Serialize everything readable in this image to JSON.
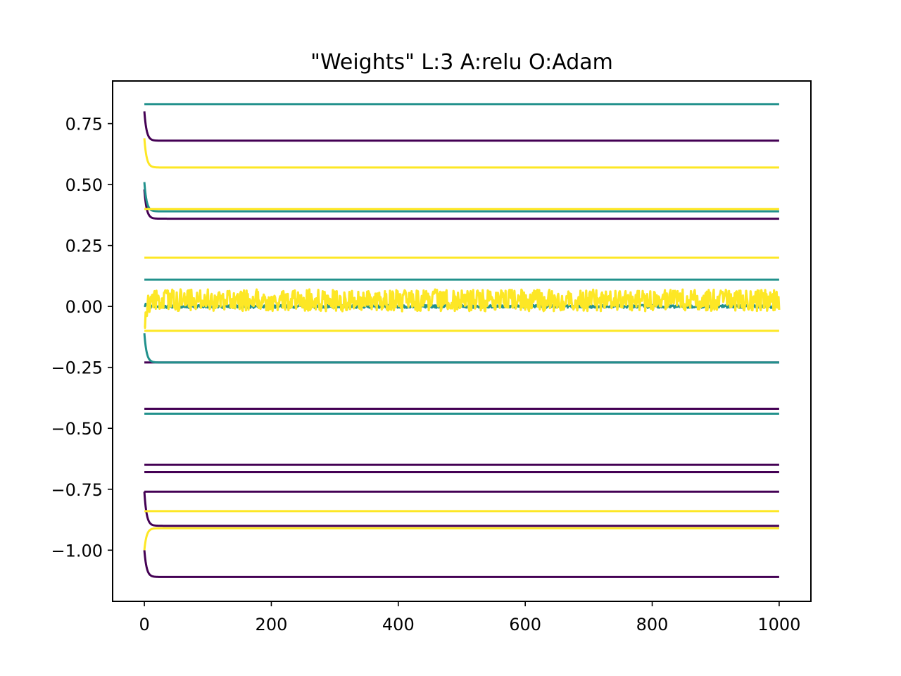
{
  "chart_data": {
    "type": "line",
    "title": "\"Weights\" L:3 A:relu O:Adam",
    "xlabel": "",
    "ylabel": "",
    "xlim": [
      -50,
      1050
    ],
    "ylim": [
      -1.21,
      0.925
    ],
    "x_ticks": [
      0,
      200,
      400,
      600,
      800,
      1000
    ],
    "x_tick_labels": [
      "0",
      "200",
      "400",
      "600",
      "800",
      "1000"
    ],
    "y_ticks": [
      0.75,
      0.5,
      0.25,
      0.0,
      -0.25,
      -0.5,
      -0.75,
      -1.0
    ],
    "y_tick_labels": [
      "0.75",
      "0.50",
      "0.25",
      "0.00",
      "−0.25",
      "−0.50",
      "−0.75",
      "−1.00"
    ],
    "grid": false,
    "legend": "none",
    "x_range": [
      0,
      1000
    ],
    "colors": {
      "purple": "#440154",
      "teal": "#21918c",
      "yellow": "#fde725"
    },
    "series": [
      {
        "color": "purple",
        "start": 0.8,
        "end": 0.68
      },
      {
        "color": "purple",
        "start": 0.48,
        "end": 0.36
      },
      {
        "color": "purple",
        "start": -0.23,
        "end": -0.23
      },
      {
        "color": "purple",
        "start": -0.42,
        "end": -0.42
      },
      {
        "color": "purple",
        "start": -0.65,
        "end": -0.65
      },
      {
        "color": "purple",
        "start": -0.68,
        "end": -0.68
      },
      {
        "color": "purple",
        "start": -0.76,
        "end": -0.76
      },
      {
        "color": "purple",
        "start": -0.76,
        "end": -0.9
      },
      {
        "color": "purple",
        "start": -1.0,
        "end": -1.11
      },
      {
        "color": "teal",
        "start": 0.83,
        "end": 0.83
      },
      {
        "color": "teal",
        "start": 0.51,
        "end": 0.39
      },
      {
        "color": "teal",
        "start": 0.11,
        "end": 0.11
      },
      {
        "color": "teal",
        "start": 0.0,
        "end": 0.0,
        "noise": 0.006
      },
      {
        "color": "teal",
        "start": -0.11,
        "end": -0.23
      },
      {
        "color": "teal",
        "start": -0.44,
        "end": -0.44
      },
      {
        "color": "yellow",
        "start": 0.69,
        "end": 0.57
      },
      {
        "color": "yellow",
        "start": 0.4,
        "end": 0.4
      },
      {
        "color": "yellow",
        "start": 0.2,
        "end": 0.2
      },
      {
        "color": "yellow",
        "start": -0.07,
        "end": 0.025,
        "noise": 0.045
      },
      {
        "color": "yellow",
        "start": -0.1,
        "end": -0.1
      },
      {
        "color": "yellow",
        "start": -0.84,
        "end": -0.84
      },
      {
        "color": "yellow",
        "start": -1.0,
        "end": -0.91
      }
    ]
  }
}
